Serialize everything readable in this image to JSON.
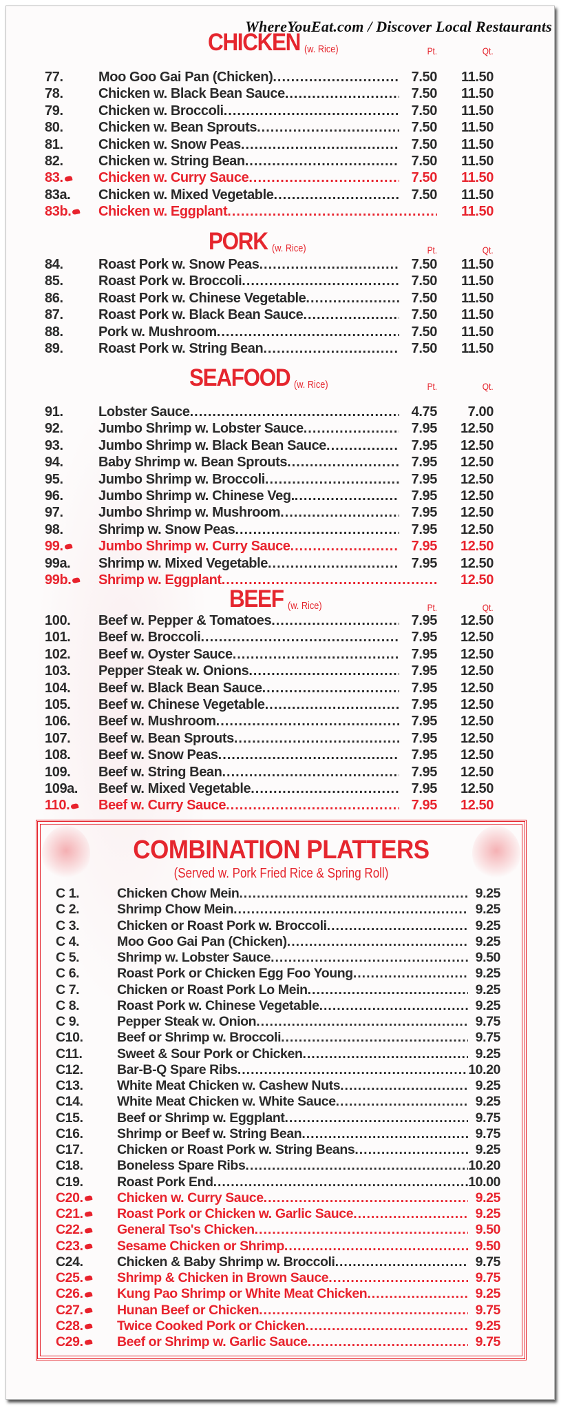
{
  "header": {
    "site": "WhereYouEat.com / Discover Local Restaurants"
  },
  "colors": {
    "accent_red": "#e5262e",
    "text": "#2a2a2a"
  },
  "legend": {
    "spicy_icon": "hot-pepper-icon"
  },
  "sections": [
    {
      "title": "CHICKEN",
      "note": "(w. Rice)",
      "pt_label": "Pt.",
      "qt_label": "Qt.",
      "items": [
        {
          "num": "77.",
          "name": "Moo Goo Gai Pan (Chicken)",
          "pt": "7.50",
          "qt": "11.50",
          "spicy": false
        },
        {
          "num": "78.",
          "name": "Chicken w. Black Bean Sauce",
          "pt": "7.50",
          "qt": "11.50",
          "spicy": false
        },
        {
          "num": "79.",
          "name": "Chicken w. Broccoli",
          "pt": "7.50",
          "qt": "11.50",
          "spicy": false
        },
        {
          "num": "80.",
          "name": "Chicken w. Bean Sprouts",
          "pt": "7.50",
          "qt": "11.50",
          "spicy": false
        },
        {
          "num": "81.",
          "name": "Chicken w. Snow Peas",
          "pt": "7.50",
          "qt": "11.50",
          "spicy": false
        },
        {
          "num": "82.",
          "name": "Chicken w. String Bean",
          "pt": "7.50",
          "qt": "11.50",
          "spicy": false
        },
        {
          "num": "83.",
          "name": "Chicken w. Curry Sauce",
          "pt": "7.50",
          "qt": "11.50",
          "spicy": true
        },
        {
          "num": "83a.",
          "name": "Chicken w. Mixed Vegetable",
          "pt": "7.50",
          "qt": "11.50",
          "spicy": false
        },
        {
          "num": "83b.",
          "name": "Chicken w. Eggplant",
          "pt": "",
          "qt": "11.50",
          "spicy": true
        }
      ]
    },
    {
      "title": "PORK",
      "note": "(w. Rice)",
      "pt_label": "Pt.",
      "qt_label": "Qt.",
      "items": [
        {
          "num": "84.",
          "name": "Roast Pork w. Snow Peas",
          "pt": "7.50",
          "qt": "11.50",
          "spicy": false
        },
        {
          "num": "85.",
          "name": "Roast Pork w. Broccoli",
          "pt": "7.50",
          "qt": "11.50",
          "spicy": false
        },
        {
          "num": "86.",
          "name": "Roast Pork w. Chinese Vegetable",
          "pt": "7.50",
          "qt": "11.50",
          "spicy": false
        },
        {
          "num": "87.",
          "name": "Roast Pork w. Black Bean Sauce",
          "pt": "7.50",
          "qt": "11.50",
          "spicy": false
        },
        {
          "num": "88.",
          "name": "Pork w. Mushroom",
          "pt": "7.50",
          "qt": "11.50",
          "spicy": false
        },
        {
          "num": "89.",
          "name": "Roast Pork w. String Bean",
          "pt": "7.50",
          "qt": "11.50",
          "spicy": false
        }
      ]
    },
    {
      "title": "SEAFOOD",
      "note": "(w. Rice)",
      "pt_label": "Pt.",
      "qt_label": "Qt.",
      "items": [
        {
          "num": "91.",
          "name": "Lobster Sauce",
          "pt": "4.75",
          "qt": "7.00",
          "spicy": false
        },
        {
          "num": "92.",
          "name": "Jumbo Shrimp w. Lobster Sauce",
          "pt": "7.95",
          "qt": "12.50",
          "spicy": false
        },
        {
          "num": "93.",
          "name": "Jumbo Shrimp w. Black Bean Sauce",
          "pt": "7.95",
          "qt": "12.50",
          "spicy": false
        },
        {
          "num": "94.",
          "name": "Baby Shrimp w. Bean Sprouts",
          "pt": "7.95",
          "qt": "12.50",
          "spicy": false
        },
        {
          "num": "95.",
          "name": "Jumbo Shrimp w. Broccoli",
          "pt": "7.95",
          "qt": "12.50",
          "spicy": false
        },
        {
          "num": "96.",
          "name": "Jumbo Shrimp w. Chinese Veg.",
          "pt": "7.95",
          "qt": "12.50",
          "spicy": false
        },
        {
          "num": "97.",
          "name": "Jumbo Shrimp w. Mushroom",
          "pt": "7.95",
          "qt": "12.50",
          "spicy": false
        },
        {
          "num": "98.",
          "name": "Shrimp w. Snow Peas",
          "pt": "7.95",
          "qt": "12.50",
          "spicy": false
        },
        {
          "num": "99.",
          "name": "Jumbo Shrimp w. Curry Sauce",
          "pt": "7.95",
          "qt": "12.50",
          "spicy": true
        },
        {
          "num": "99a.",
          "name": "Shrimp w. Mixed Vegetable",
          "pt": "7.95",
          "qt": "12.50",
          "spicy": false
        },
        {
          "num": "99b.",
          "name": "Shrimp w. Eggplant",
          "pt": "",
          "qt": "12.50",
          "spicy": true
        }
      ]
    },
    {
      "title": "BEEF",
      "note": "(w. Rice)",
      "pt_label": "Pt.",
      "qt_label": "Qt.",
      "items": [
        {
          "num": "100.",
          "name": "Beef w. Pepper & Tomatoes",
          "pt": "7.95",
          "qt": "12.50",
          "spicy": false
        },
        {
          "num": "101.",
          "name": "Beef w. Broccoli",
          "pt": "7.95",
          "qt": "12.50",
          "spicy": false
        },
        {
          "num": "102.",
          "name": "Beef w. Oyster Sauce",
          "pt": "7.95",
          "qt": "12.50",
          "spicy": false
        },
        {
          "num": "103.",
          "name": "Pepper Steak w. Onions",
          "pt": "7.95",
          "qt": "12.50",
          "spicy": false
        },
        {
          "num": "104.",
          "name": "Beef w. Black Bean Sauce",
          "pt": "7.95",
          "qt": "12.50",
          "spicy": false
        },
        {
          "num": "105.",
          "name": "Beef w. Chinese Vegetable",
          "pt": "7.95",
          "qt": "12.50",
          "spicy": false
        },
        {
          "num": "106.",
          "name": "Beef w. Mushroom",
          "pt": "7.95",
          "qt": "12.50",
          "spicy": false
        },
        {
          "num": "107.",
          "name": "Beef w. Bean Sprouts",
          "pt": "7.95",
          "qt": "12.50",
          "spicy": false
        },
        {
          "num": "108.",
          "name": "Beef w. Snow Peas",
          "pt": "7.95",
          "qt": "12.50",
          "spicy": false
        },
        {
          "num": "109.",
          "name": "Beef w. String Bean",
          "pt": "7.95",
          "qt": "12.50",
          "spicy": false
        },
        {
          "num": "109a.",
          "name": "Beef w. Mixed Vegetable",
          "pt": "7.95",
          "qt": "12.50",
          "spicy": false
        },
        {
          "num": "110.",
          "name": "Beef w. Curry Sauce",
          "pt": "7.95",
          "qt": "12.50",
          "spicy": true
        }
      ]
    }
  ],
  "combo": {
    "title": "COMBINATION PLATTERS",
    "subtitle": "(Served w. Pork Fried Rice & Spring Roll)",
    "items": [
      {
        "num": "C 1.",
        "name": "Chicken Chow Mein",
        "price": "9.25",
        "spicy": false
      },
      {
        "num": "C 2.",
        "name": "Shrimp Chow Mein",
        "price": "9.25",
        "spicy": false
      },
      {
        "num": "C 3.",
        "name": "Chicken or Roast Pork w. Broccoli",
        "price": "9.25",
        "spicy": false
      },
      {
        "num": "C 4.",
        "name": "Moo Goo Gai Pan (Chicken)",
        "price": "9.25",
        "spicy": false
      },
      {
        "num": "C 5.",
        "name": "Shrimp w. Lobster Sauce",
        "price": "9.50",
        "spicy": false
      },
      {
        "num": "C 6.",
        "name": "Roast Pork or Chicken Egg Foo Young",
        "price": "9.25",
        "spicy": false
      },
      {
        "num": "C 7.",
        "name": "Chicken or Roast Pork Lo Mein",
        "price": "9.25",
        "spicy": false
      },
      {
        "num": "C 8.",
        "name": "Roast Pork w. Chinese Vegetable",
        "price": "9.25",
        "spicy": false
      },
      {
        "num": "C 9.",
        "name": "Pepper Steak w. Onion",
        "price": "9.75",
        "spicy": false
      },
      {
        "num": "C10.",
        "name": "Beef or Shrimp w. Broccoli",
        "price": "9.75",
        "spicy": false
      },
      {
        "num": "C11.",
        "name": "Sweet & Sour Pork or Chicken",
        "price": "9.25",
        "spicy": false
      },
      {
        "num": "C12.",
        "name": "Bar-B-Q Spare Ribs",
        "price": "10.20",
        "spicy": false
      },
      {
        "num": "C13.",
        "name": "White Meat Chicken w. Cashew Nuts",
        "price": "9.25",
        "spicy": false
      },
      {
        "num": "C14.",
        "name": "White Meat Chicken w. White Sauce",
        "price": "9.25",
        "spicy": false
      },
      {
        "num": "C15.",
        "name": "Beef or Shrimp w. Eggplant",
        "price": "9.75",
        "spicy": false
      },
      {
        "num": "C16.",
        "name": "Shrimp or Beef w. String Bean",
        "price": "9.75",
        "spicy": false
      },
      {
        "num": "C17.",
        "name": "Chicken or Roast Pork w. String Beans",
        "price": "9.25",
        "spicy": false
      },
      {
        "num": "C18.",
        "name": "Boneless Spare Ribs",
        "price": "10.20",
        "spicy": false
      },
      {
        "num": "C19.",
        "name": "Roast Pork End",
        "price": "10.00",
        "spicy": false
      },
      {
        "num": "C20.",
        "name": "Chicken w. Curry Sauce",
        "price": "9.25",
        "spicy": true
      },
      {
        "num": "C21.",
        "name": "Roast Pork or Chicken w. Garlic Sauce",
        "price": "9.25",
        "spicy": true
      },
      {
        "num": "C22.",
        "name": "General Tso's Chicken",
        "price": "9.50",
        "spicy": true
      },
      {
        "num": "C23.",
        "name": "Sesame Chicken or Shrimp",
        "price": "9.50",
        "spicy": true
      },
      {
        "num": "C24.",
        "name": "Chicken & Baby Shrimp w. Broccoli",
        "price": "9.75",
        "spicy": false
      },
      {
        "num": "C25.",
        "name": "Shrimp & Chicken in Brown Sauce",
        "price": "9.75",
        "spicy": true
      },
      {
        "num": "C26.",
        "name": "Kung Pao Shrimp or White Meat Chicken",
        "price": "9.25",
        "spicy": true
      },
      {
        "num": "C27.",
        "name": "Hunan Beef or Chicken",
        "price": "9.75",
        "spicy": true
      },
      {
        "num": "C28.",
        "name": "Twice Cooked Pork or Chicken",
        "price": "9.25",
        "spicy": true
      },
      {
        "num": "C29.",
        "name": "Beef or Shrimp w. Garlic Sauce",
        "price": "9.75",
        "spicy": true
      }
    ]
  }
}
